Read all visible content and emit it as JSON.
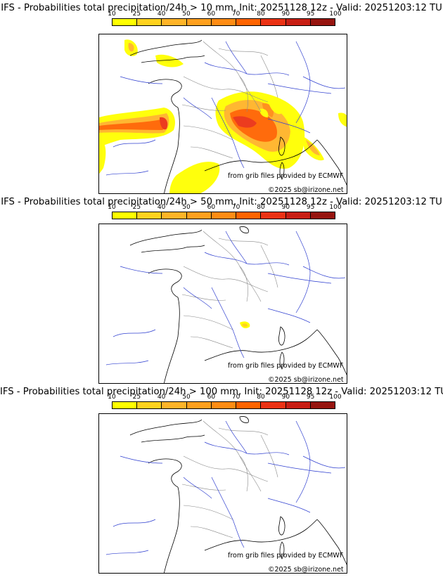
{
  "colorbar": {
    "ticks": [
      "10",
      "25",
      "40",
      "50",
      "60",
      "70",
      "80",
      "90",
      "95",
      "100"
    ],
    "colors": [
      "#ffff00",
      "#ffd21e",
      "#ffb428",
      "#ffa01e",
      "#ff8c14",
      "#ff6400",
      "#eb3214",
      "#c81e14",
      "#96140f",
      "#641408"
    ]
  },
  "panels": [
    {
      "title": "IFS - Probabilities total precipitation/24h > 10 mm, Init: 20251128 12z - Valid: 20251203:12 TU",
      "credit_source": "from grib files provided by ECMWF",
      "credit_copyright": "©2025 sb@irizone.net"
    },
    {
      "title": "IFS - Probabilities total precipitation/24h > 50 mm, Init: 20251128 12z - Valid: 20251203:12 TU",
      "credit_source": "from grib files provided by ECMWF",
      "credit_copyright": "©2025 sb@irizone.net"
    },
    {
      "title": "IFS - Probabilities total precipitation/24h > 100 mm, Init: 20251128 12z - Valid: 20251203:12 TU",
      "credit_source": "from grib files provided by ECMWF",
      "credit_copyright": "©2025 sb@irizone.net"
    }
  ]
}
